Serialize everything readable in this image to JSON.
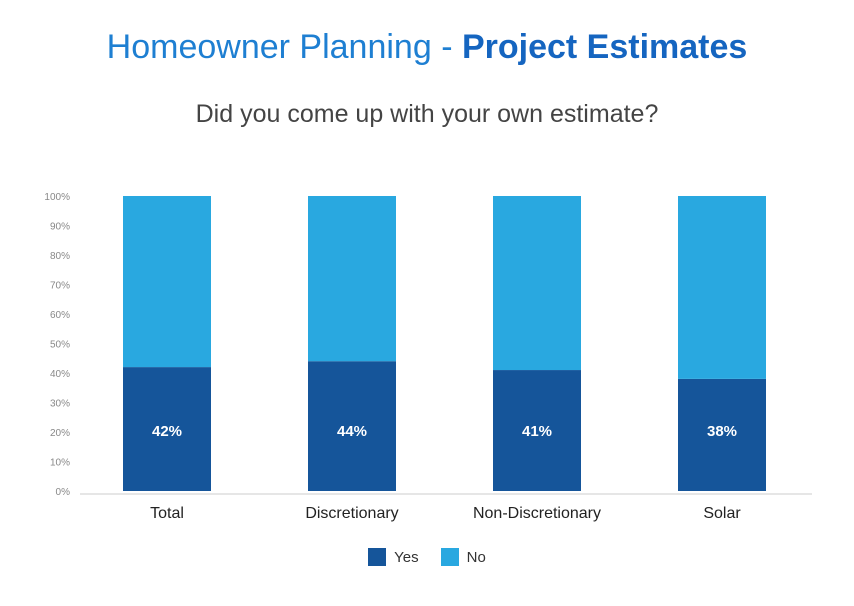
{
  "title": {
    "main": "Homeowner Planning - ",
    "emphasis": "Project Estimates"
  },
  "subtitle": "Did you come up with your own estimate?",
  "colors": {
    "yes": "#15559A",
    "no": "#29A8E0"
  },
  "chart_data": {
    "type": "bar",
    "stacked": true,
    "categories": [
      "Total",
      "Discretionary",
      "Non-Discretionary",
      "Solar"
    ],
    "series": [
      {
        "name": "Yes",
        "values": [
          42,
          44,
          41,
          38
        ]
      },
      {
        "name": "No",
        "values": [
          58,
          56,
          59,
          62
        ]
      }
    ],
    "data_labels": [
      "42%",
      "44%",
      "41%",
      "38%"
    ],
    "yticks": [
      "0%",
      "10%",
      "20%",
      "30%",
      "40%",
      "50%",
      "60%",
      "70%",
      "80%",
      "90%",
      "100%"
    ],
    "ylim": [
      0,
      100
    ],
    "grid": false,
    "legend": "bottom-center"
  }
}
